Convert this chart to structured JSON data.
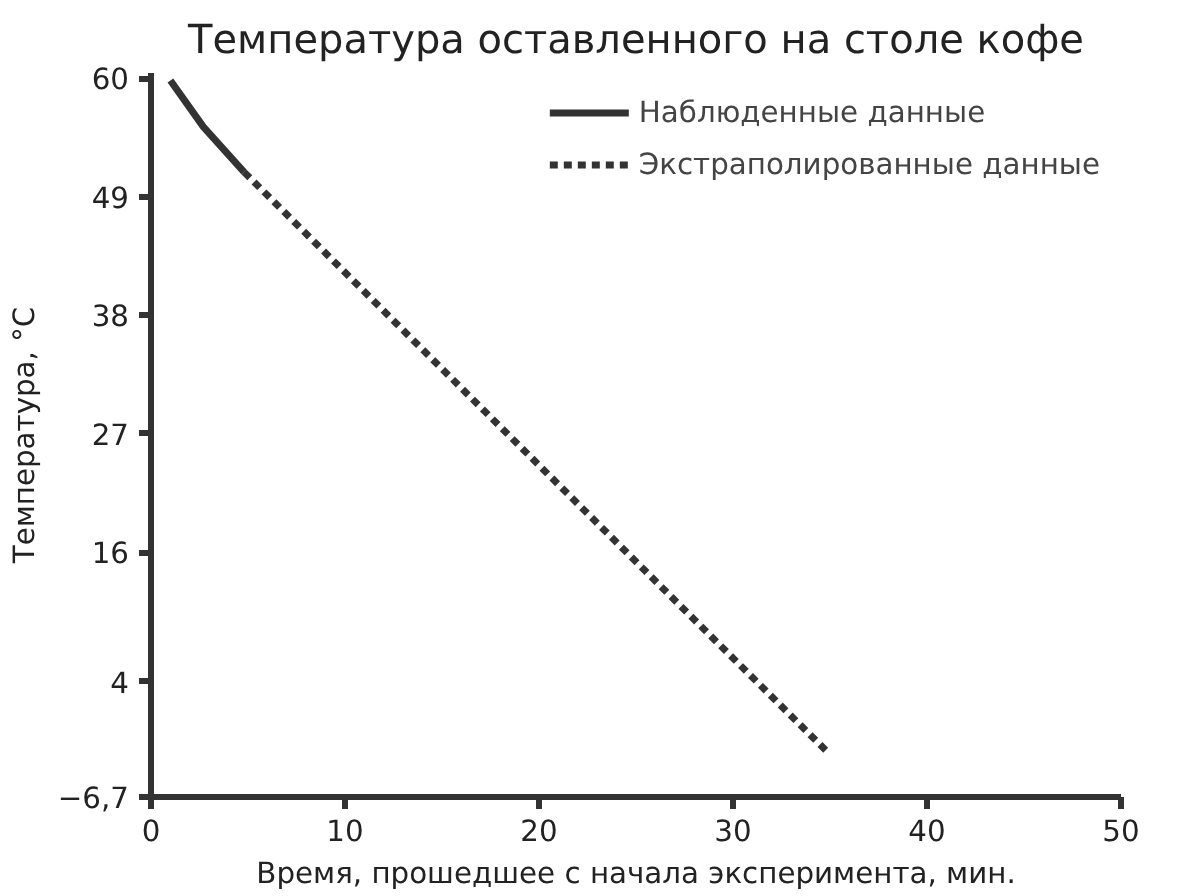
{
  "chart_data": {
    "type": "line",
    "title": "Температура оставленного на столе кофе",
    "xlabel": "Время, прошедшее с начала эксперимента, мин.",
    "ylabel": "Температура, °C",
    "series": [
      {
        "name": "Наблюденные данные",
        "color": "#333333",
        "line_style": "solid",
        "x": [
          1.0,
          2.7,
          4.8
        ],
        "values": [
          59.8,
          55.5,
          51.3
        ]
      },
      {
        "name": "Экстраполированные данные",
        "color": "#333333",
        "line_style": "dashed",
        "x": [
          4.8,
          34.8
        ],
        "values": [
          51.3,
          -2.4
        ]
      }
    ],
    "xlim": [
      0,
      50
    ],
    "xticks": [
      0,
      10,
      20,
      30,
      40,
      50
    ],
    "ylim": [
      -6.7,
      60.5
    ],
    "yticks": [
      60,
      49,
      38,
      27,
      16,
      4,
      {
        "value": -6.7,
        "label": "−6,7"
      }
    ],
    "grid": false,
    "legend": "top right",
    "marker": "none"
  }
}
